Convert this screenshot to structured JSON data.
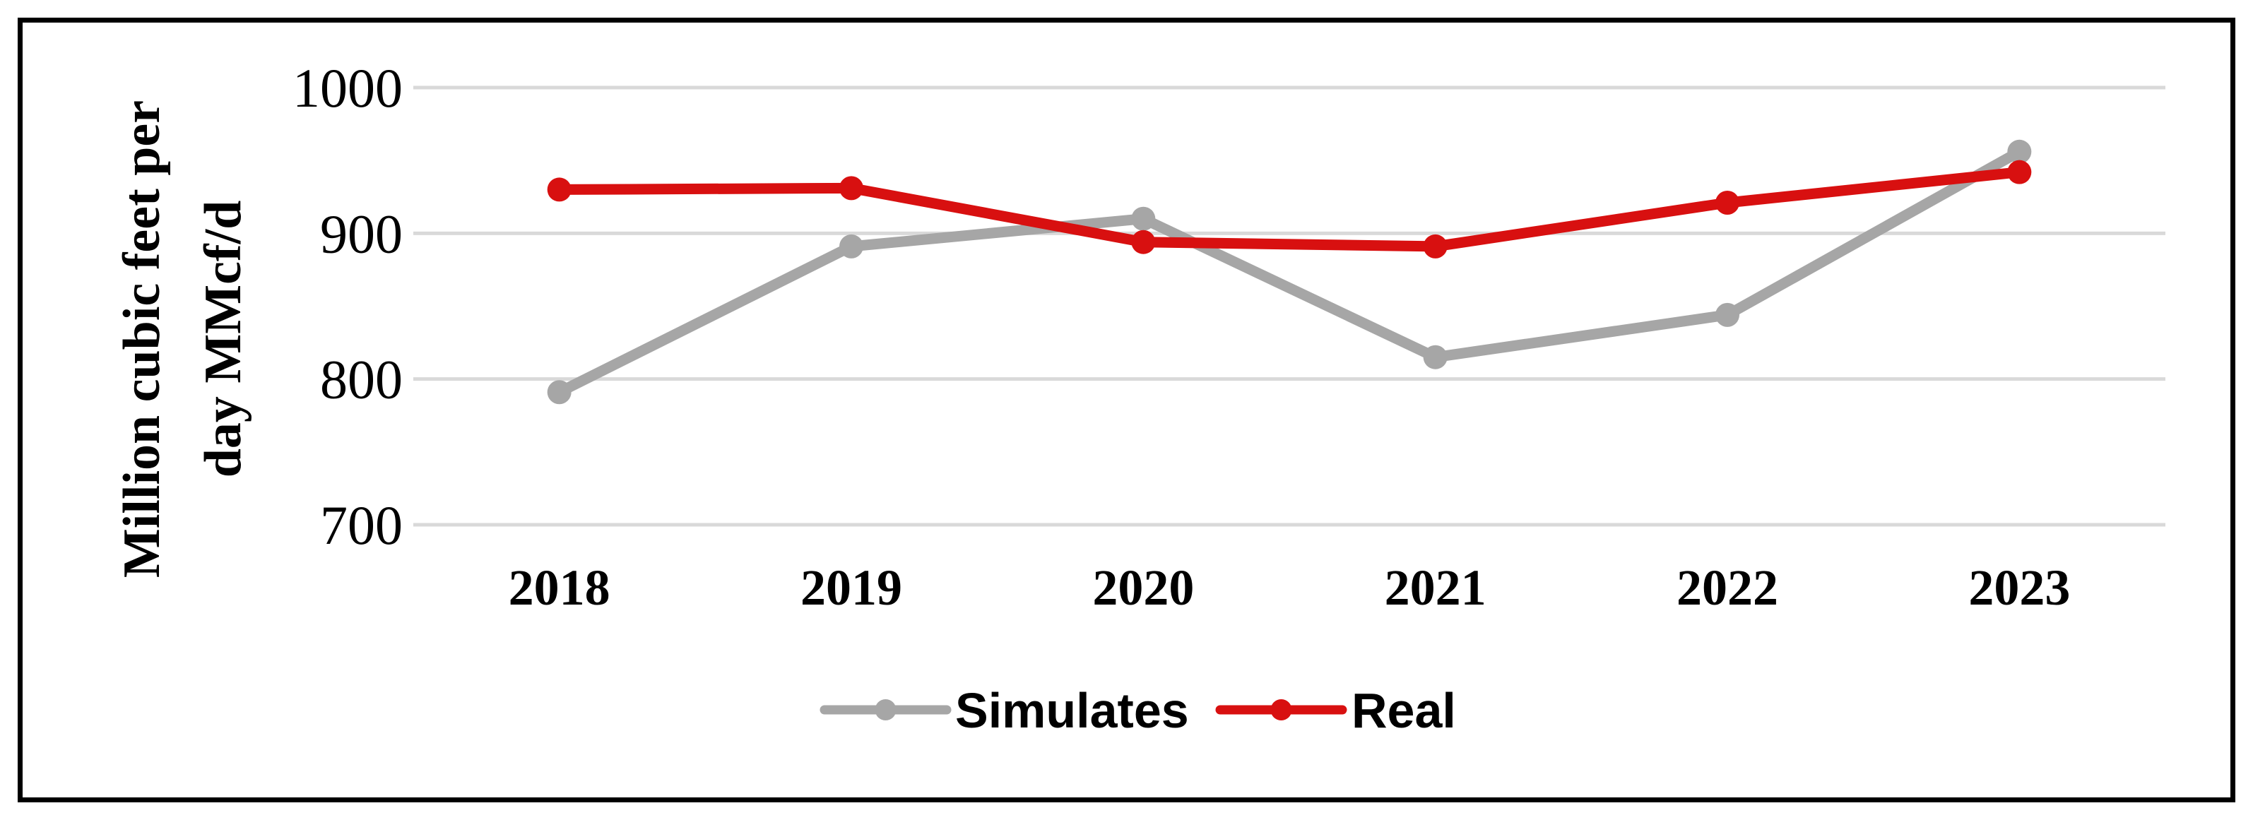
{
  "figure": {
    "background_color": "#FFFFFF",
    "border_color": "#000000",
    "text_color": "#000000"
  },
  "chart_data": {
    "type": "line",
    "title": "",
    "ylabel_line1": "Million cubic feet per",
    "ylabel_line2": "day MMcf/d",
    "categories": [
      "2018",
      "2019",
      "2020",
      "2021",
      "2022",
      "2023"
    ],
    "series": [
      {
        "name": "Simulates",
        "color": "#A6A6A6",
        "values": [
          791,
          891,
          910,
          815,
          844,
          956
        ]
      },
      {
        "name": "Real",
        "color": "#D81010",
        "values": [
          930,
          931,
          894,
          891,
          921,
          942
        ]
      }
    ],
    "ylim": [
      700,
      1000
    ],
    "yticks": [
      1000,
      900,
      800,
      700
    ],
    "grid": true,
    "gridline_color": "#D9D9D9",
    "legend_position": "bottom"
  },
  "legend": {
    "items": [
      {
        "label": "Simulates",
        "color": "#A6A6A6"
      },
      {
        "label": "Real",
        "color": "#D81010"
      }
    ]
  }
}
